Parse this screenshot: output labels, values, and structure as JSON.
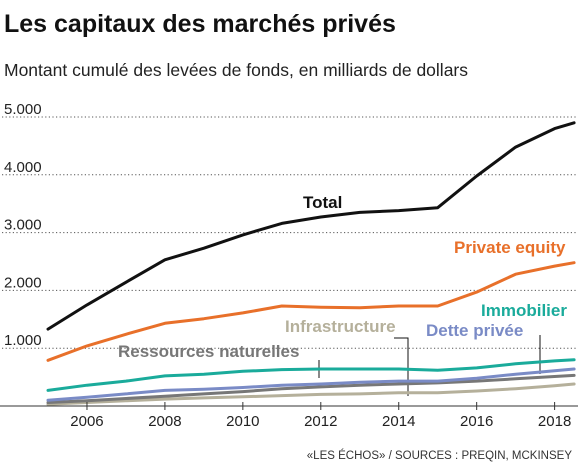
{
  "title": "Les capitaux des marchés privés",
  "subtitle": "Montant cumulé des levées de fonds, en milliards de dollars",
  "source": "«LES ÉCHOS» / SOURCES : PREQIN, MCKINSEY",
  "chart_data": {
    "type": "line",
    "title": "Les capitaux des marchés privés",
    "subtitle": "Montant cumulé des levées de fonds, en milliards de dollars",
    "xlabel": "",
    "ylabel": "",
    "xlim": [
      2005,
      2018.6
    ],
    "ylim": [
      0,
      5000
    ],
    "x_ticks": [
      2006,
      2008,
      2010,
      2012,
      2014,
      2016,
      2018
    ],
    "x_tick_labels": [
      "2006",
      "2008",
      "2010",
      "2012",
      "2014",
      "2016",
      "2018"
    ],
    "y_ticks": [
      1000,
      2000,
      3000,
      4000,
      5000
    ],
    "y_tick_labels": [
      "1.000",
      "2.000",
      "3.000",
      "4.000",
      "5.000"
    ],
    "grid": "horizontal dotted",
    "x": [
      2005,
      2006,
      2007,
      2008,
      2009,
      2010,
      2011,
      2012,
      2013,
      2014,
      2015,
      2016,
      2017,
      2018,
      2018.5
    ],
    "series": [
      {
        "name": "Total",
        "color": "#111111",
        "values": [
          1330,
          1750,
          2140,
          2530,
          2730,
          2960,
          3160,
          3270,
          3350,
          3380,
          3430,
          3980,
          4480,
          4800,
          4900
        ]
      },
      {
        "name": "Private equity",
        "color": "#e8702a",
        "values": [
          790,
          1040,
          1240,
          1430,
          1510,
          1610,
          1730,
          1710,
          1700,
          1730,
          1730,
          1970,
          2280,
          2420,
          2480
        ]
      },
      {
        "name": "Immobilier",
        "color": "#1aab9b",
        "values": [
          270,
          360,
          430,
          520,
          550,
          600,
          630,
          640,
          640,
          640,
          620,
          660,
          730,
          780,
          800
        ]
      },
      {
        "name": "Dette privée",
        "color": "#7a8bc6",
        "values": [
          100,
          150,
          210,
          270,
          290,
          320,
          360,
          380,
          410,
          430,
          430,
          480,
          550,
          610,
          640
        ]
      },
      {
        "name": "Ressources naturelles",
        "color": "#777777",
        "values": [
          60,
          90,
          130,
          170,
          210,
          250,
          300,
          330,
          360,
          380,
          400,
          430,
          470,
          510,
          530
        ]
      },
      {
        "name": "Infrastructure",
        "color": "#b5b09b",
        "values": [
          30,
          60,
          90,
          120,
          140,
          160,
          180,
          200,
          210,
          230,
          230,
          260,
          300,
          350,
          380
        ]
      }
    ],
    "labels": [
      {
        "text": "Total",
        "series": "Total"
      },
      {
        "text": "Private equity",
        "series": "Private equity"
      },
      {
        "text": "Immobilier",
        "series": "Immobilier"
      },
      {
        "text": "Dette privée",
        "series": "Dette privée"
      },
      {
        "text": "Infrastructure",
        "series": "Infrastructure"
      },
      {
        "text": "Ressources naturelles",
        "series": "Ressources naturelles"
      }
    ]
  }
}
